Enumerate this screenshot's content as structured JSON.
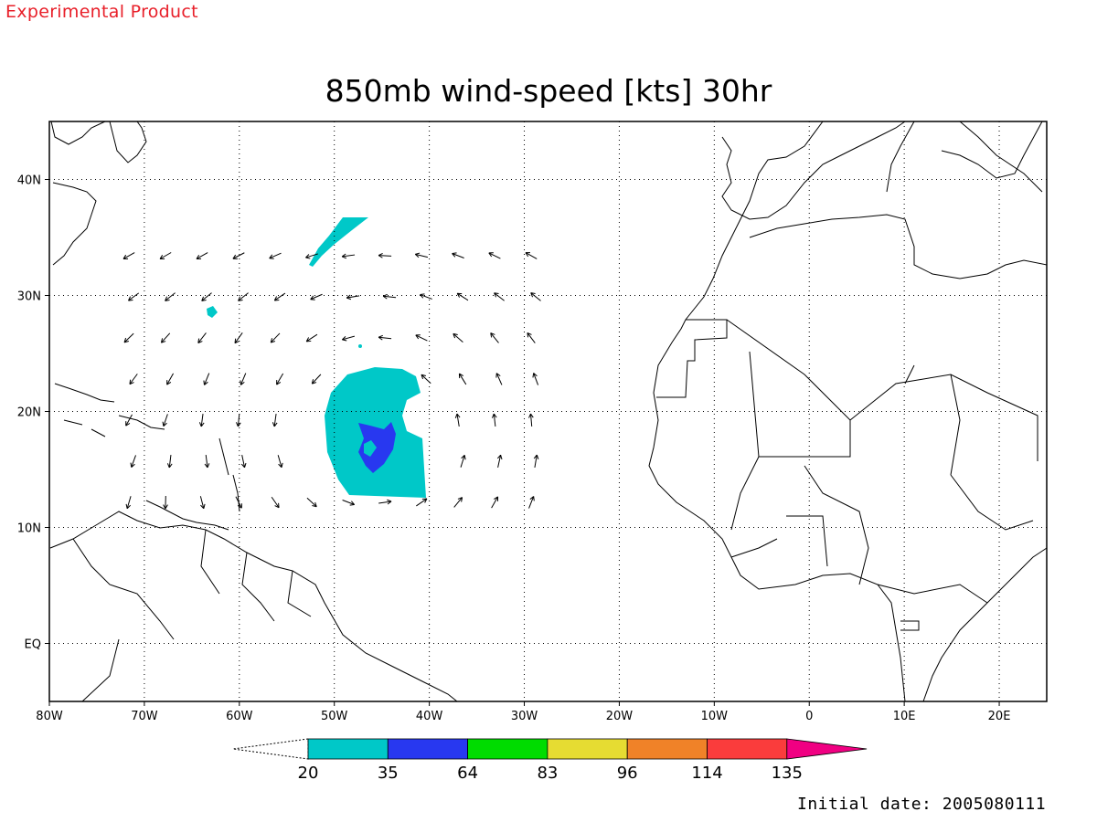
{
  "header": {
    "tag": "Experimental Product",
    "title": "850mb wind-speed [kts] 30hr",
    "initial_date": "Initial date: 2005080111"
  },
  "map": {
    "projection": "lat-lon",
    "lon_range": [
      -80,
      25
    ],
    "lat_range": [
      -5,
      45
    ],
    "grid": true,
    "lon_ticks": [
      {
        "lon": -80,
        "label": "80W"
      },
      {
        "lon": -70,
        "label": "70W"
      },
      {
        "lon": -60,
        "label": "60W"
      },
      {
        "lon": -50,
        "label": "50W"
      },
      {
        "lon": -40,
        "label": "40W"
      },
      {
        "lon": -30,
        "label": "30W"
      },
      {
        "lon": -20,
        "label": "20W"
      },
      {
        "lon": -10,
        "label": "10W"
      },
      {
        "lon": 0,
        "label": "0"
      },
      {
        "lon": 10,
        "label": "10E"
      },
      {
        "lon": 20,
        "label": "20E"
      }
    ],
    "lat_ticks": [
      {
        "lat": 40,
        "label": "40N"
      },
      {
        "lat": 30,
        "label": "30N"
      },
      {
        "lat": 20,
        "label": "20N"
      },
      {
        "lat": 10,
        "label": "10N"
      },
      {
        "lat": 0,
        "label": "EQ"
      }
    ]
  },
  "colorbar": {
    "bins": [
      {
        "from": 20,
        "to": 35,
        "color": "#00c8c8"
      },
      {
        "from": 35,
        "to": 64,
        "color": "#2838f0"
      },
      {
        "from": 64,
        "to": 83,
        "color": "#00dc00"
      },
      {
        "from": 83,
        "to": 96,
        "color": "#e6dc32"
      },
      {
        "from": 96,
        "to": 114,
        "color": "#f08228"
      },
      {
        "from": 114,
        "to": 135,
        "color": "#fa3c3c"
      },
      {
        "from": 135,
        "to": null,
        "color": "#f00082"
      }
    ],
    "labels": [
      "20",
      "35",
      "64",
      "83",
      "96",
      "114",
      "135"
    ]
  },
  "colors": {
    "tag": "#e8202a",
    "shade_20_35": "#00c8c8",
    "shade_35_64": "#2838f0"
  }
}
